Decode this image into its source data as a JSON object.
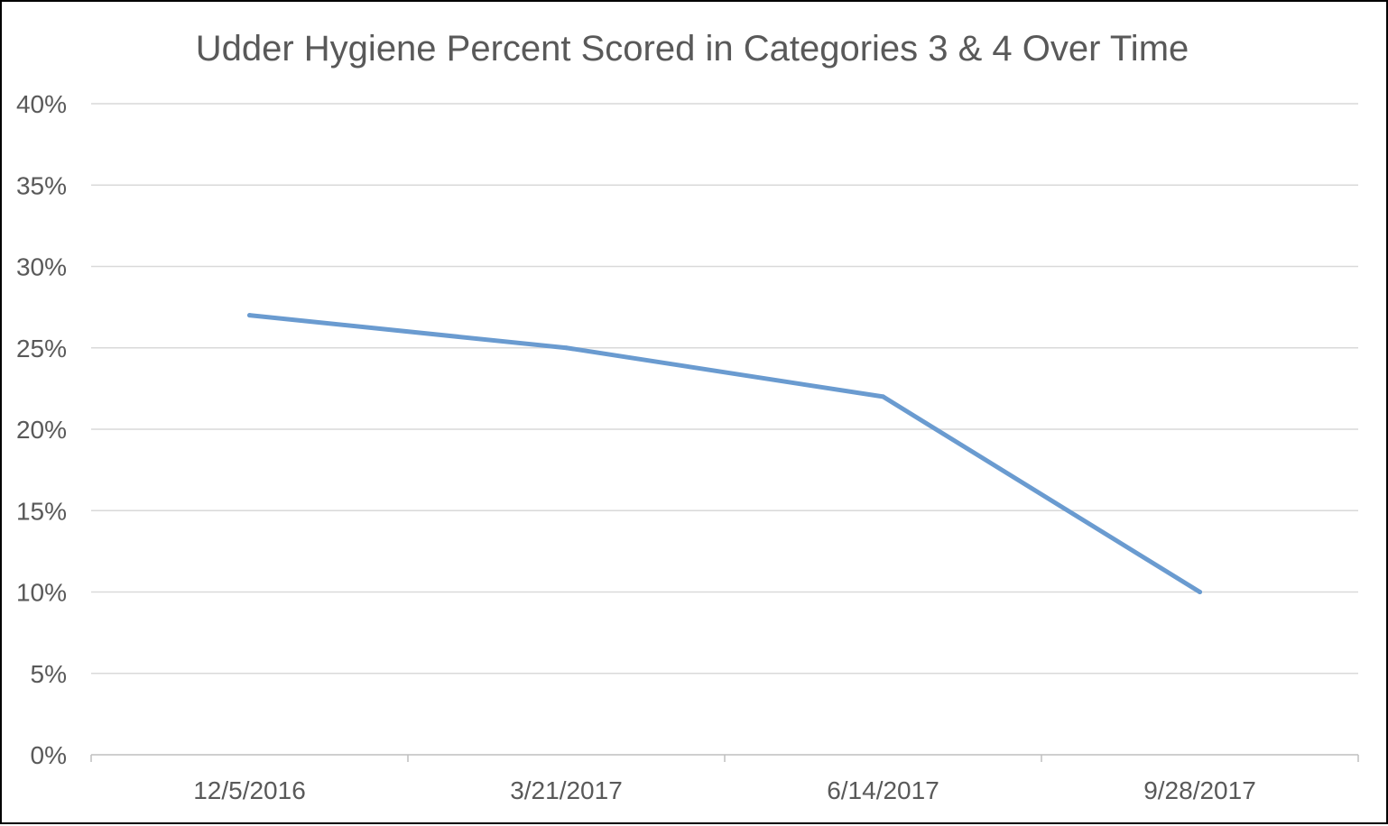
{
  "chart_data": {
    "type": "line",
    "title": "Udder Hygiene Percent Scored in Categories 3 & 4 Over Time",
    "xlabel": "",
    "ylabel": "",
    "categories": [
      "12/5/2016",
      "3/21/2017",
      "6/14/2017",
      "9/28/2017"
    ],
    "series": [
      {
        "values": [
          0.27,
          0.25,
          0.22,
          0.1
        ],
        "color": "#6a9bd0"
      }
    ],
    "ylim": [
      0,
      0.4
    ],
    "yticks": [
      0,
      0.05,
      0.1,
      0.15,
      0.2,
      0.25,
      0.3,
      0.35,
      0.4
    ],
    "ytick_labels": [
      "0%",
      "5%",
      "10%",
      "15%",
      "20%",
      "25%",
      "30%",
      "35%",
      "40%"
    ],
    "grid": true,
    "legend": "none",
    "colors": {
      "gridline": "#d9d9d9",
      "axis": "#bfbfbf",
      "text": "#595959",
      "frame": "#000000"
    }
  }
}
